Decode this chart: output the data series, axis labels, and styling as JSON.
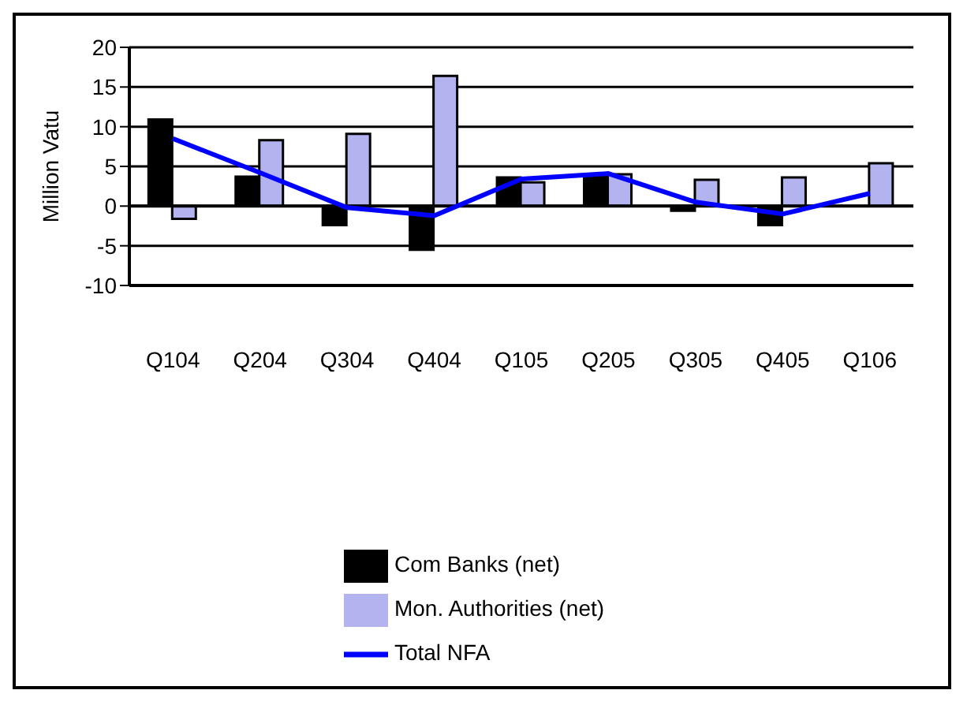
{
  "chart_data": {
    "type": "bar",
    "ylabel": "Million Vatu",
    "categories": [
      "Q104",
      "Q204",
      "Q304",
      "Q404",
      "Q105",
      "Q205",
      "Q305",
      "Q405",
      "Q106"
    ],
    "series": [
      {
        "name": "Com Banks (net)",
        "color": "#000000",
        "values": [
          10.9,
          3.7,
          -2.4,
          -5.5,
          3.6,
          4.0,
          -0.6,
          -2.4,
          null
        ]
      },
      {
        "name": "Mon. Authorities (net)",
        "color": "#b3b3f0",
        "values": [
          -1.6,
          8.3,
          9.1,
          16.4,
          3.0,
          4.0,
          3.3,
          3.6,
          5.4
        ]
      },
      {
        "name": "Total NFA",
        "type": "line",
        "color": "#0000ff",
        "values": [
          8.5,
          4.2,
          -0.2,
          -1.2,
          3.4,
          4.1,
          0.5,
          -1.0,
          1.6
        ]
      }
    ],
    "ylim": [
      -10,
      20
    ],
    "yticks": [
      -10,
      -5,
      0,
      5,
      10,
      15,
      20
    ],
    "grid": "y",
    "legend": "bottom",
    "marker": "none"
  }
}
